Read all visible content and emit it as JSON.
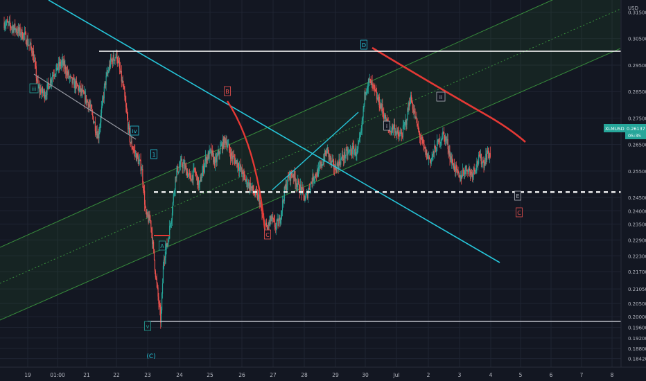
{
  "chart_data": {
    "type": "candlestick",
    "symbol": "XLMUSD",
    "currency": "USD",
    "last_price": "0.26137",
    "countdown": "05:35",
    "colors": {
      "background": "#131722",
      "grid": "#1f2433",
      "up": "#26a69a",
      "down": "#ef5350",
      "text": "#b2b5be",
      "channel": "#2e7d32",
      "cyan": "#26c6da",
      "red": "#e53935",
      "white": "#ffffff",
      "last": "#26a69a"
    },
    "ylim": [
      0.184,
      0.32
    ],
    "y_ticks": [
      "0.31500",
      "0.30500",
      "0.29500",
      "0.28500",
      "0.27500",
      "0.26500",
      "0.25500",
      "0.24500",
      "0.24000",
      "0.23500",
      "0.22900",
      "0.22300",
      "0.21700",
      "0.21050",
      "0.20500",
      "0.20000",
      "0.19600",
      "0.19200",
      "0.18800",
      "0.18420"
    ],
    "y_tick_values": [
      0.315,
      0.305,
      0.295,
      0.285,
      0.275,
      0.265,
      0.255,
      0.245,
      0.24,
      0.235,
      0.229,
      0.223,
      0.217,
      0.2105,
      0.205,
      0.2,
      0.196,
      0.192,
      0.188,
      0.1842
    ],
    "x_ticks": [
      "19",
      "01:00",
      "21",
      "22",
      "23",
      "24",
      "25",
      "26",
      "27",
      "28",
      "29",
      "30",
      "Jul",
      "2",
      "3",
      "4",
      "5",
      "6",
      "7",
      "8"
    ],
    "horizontal_levels": [
      {
        "value": 0.30023,
        "label": "0.30023",
        "style": "solid",
        "color": "#ffffff"
      },
      {
        "value": 0.24707,
        "label": "0.24707",
        "style": "dashed",
        "color": "#ffffff"
      },
      {
        "value": 0.19825,
        "label": "0.19825",
        "style": "solid",
        "color": "#b2b5be"
      }
    ],
    "wave_labels": [
      {
        "text": "iii",
        "color": "#26a69a",
        "kind": "box"
      },
      {
        "text": "iv",
        "color": "#26c6da",
        "kind": "box"
      },
      {
        "text": "v",
        "color": "#26a69a",
        "kind": "box"
      },
      {
        "text": "1",
        "color": "#26c6da",
        "kind": "box"
      },
      {
        "text": "A",
        "color": "#26a69a",
        "kind": "box"
      },
      {
        "text": "B",
        "color": "#ef5350",
        "kind": "box"
      },
      {
        "text": "C",
        "color": "#ef5350",
        "kind": "box"
      },
      {
        "text": "D",
        "color": "#26c6da",
        "kind": "box"
      },
      {
        "text": "i",
        "color": "#b2b5be",
        "kind": "box"
      },
      {
        "text": "ii",
        "color": "#b2b5be",
        "kind": "box"
      },
      {
        "text": "E",
        "color": "#b2b5be",
        "kind": "box"
      },
      {
        "text": "C",
        "color": "#ef5350",
        "kind": "box"
      },
      {
        "text": "(C)",
        "color": "#26c6da",
        "kind": "text"
      }
    ],
    "price_path": [
      [
        0.0,
        0.311
      ],
      [
        1.5,
        0.309
      ],
      [
        3.0,
        0.306
      ],
      [
        4.2,
        0.3
      ],
      [
        5.0,
        0.286
      ],
      [
        6.0,
        0.284
      ],
      [
        7.2,
        0.292
      ],
      [
        8.5,
        0.296
      ],
      [
        9.8,
        0.289
      ],
      [
        11.0,
        0.286
      ],
      [
        12.5,
        0.28
      ],
      [
        13.8,
        0.268
      ],
      [
        14.8,
        0.288
      ],
      [
        15.6,
        0.296
      ],
      [
        16.5,
        0.299
      ],
      [
        17.5,
        0.286
      ],
      [
        18.5,
        0.266
      ],
      [
        19.5,
        0.26
      ],
      [
        20.2,
        0.256
      ],
      [
        20.8,
        0.238
      ],
      [
        21.5,
        0.236
      ],
      [
        22.3,
        0.214
      ],
      [
        23.0,
        0.198
      ],
      [
        23.4,
        0.222
      ],
      [
        24.0,
        0.228
      ],
      [
        24.6,
        0.239
      ],
      [
        25.2,
        0.254
      ],
      [
        26.0,
        0.258
      ],
      [
        26.6,
        0.256
      ],
      [
        27.3,
        0.252
      ],
      [
        28.0,
        0.255
      ],
      [
        28.6,
        0.249
      ],
      [
        29.5,
        0.259
      ],
      [
        30.3,
        0.262
      ],
      [
        31.0,
        0.258
      ],
      [
        31.8,
        0.264
      ],
      [
        32.5,
        0.267
      ],
      [
        33.3,
        0.261
      ],
      [
        34.2,
        0.258
      ],
      [
        34.8,
        0.255
      ],
      [
        35.5,
        0.251
      ],
      [
        36.2,
        0.249
      ],
      [
        36.8,
        0.246
      ],
      [
        37.4,
        0.245
      ],
      [
        38.0,
        0.236
      ],
      [
        38.6,
        0.233
      ],
      [
        39.2,
        0.237
      ],
      [
        39.8,
        0.234
      ],
      [
        40.4,
        0.236
      ],
      [
        41.2,
        0.248
      ],
      [
        41.8,
        0.253
      ],
      [
        42.4,
        0.254
      ],
      [
        43.0,
        0.25
      ],
      [
        43.6,
        0.248
      ],
      [
        44.2,
        0.244
      ],
      [
        44.8,
        0.249
      ],
      [
        45.4,
        0.253
      ],
      [
        46.2,
        0.255
      ],
      [
        46.8,
        0.259
      ],
      [
        47.4,
        0.263
      ],
      [
        48.0,
        0.258
      ],
      [
        48.6,
        0.256
      ],
      [
        49.3,
        0.259
      ],
      [
        50.0,
        0.261
      ],
      [
        50.6,
        0.262
      ],
      [
        51.2,
        0.263
      ],
      [
        51.8,
        0.262
      ],
      [
        52.4,
        0.269
      ],
      [
        53.0,
        0.286
      ],
      [
        53.6,
        0.289
      ],
      [
        54.2,
        0.286
      ],
      [
        54.8,
        0.282
      ],
      [
        55.4,
        0.279
      ],
      [
        56.0,
        0.274
      ],
      [
        56.6,
        0.27
      ],
      [
        57.2,
        0.272
      ],
      [
        57.8,
        0.268
      ],
      [
        58.4,
        0.269
      ],
      [
        59.0,
        0.274
      ],
      [
        59.6,
        0.283
      ],
      [
        60.2,
        0.277
      ],
      [
        60.8,
        0.27
      ],
      [
        61.4,
        0.265
      ],
      [
        62.0,
        0.261
      ],
      [
        62.6,
        0.259
      ],
      [
        63.2,
        0.263
      ],
      [
        63.8,
        0.266
      ],
      [
        64.4,
        0.269
      ],
      [
        65.0,
        0.266
      ],
      [
        65.6,
        0.259
      ],
      [
        66.2,
        0.256
      ],
      [
        66.8,
        0.252
      ],
      [
        67.4,
        0.255
      ],
      [
        68.0,
        0.256
      ],
      [
        68.6,
        0.254
      ],
      [
        69.2,
        0.257
      ],
      [
        69.8,
        0.26
      ],
      [
        70.4,
        0.258
      ],
      [
        70.9,
        0.262
      ],
      [
        71.4,
        0.261
      ]
    ]
  }
}
